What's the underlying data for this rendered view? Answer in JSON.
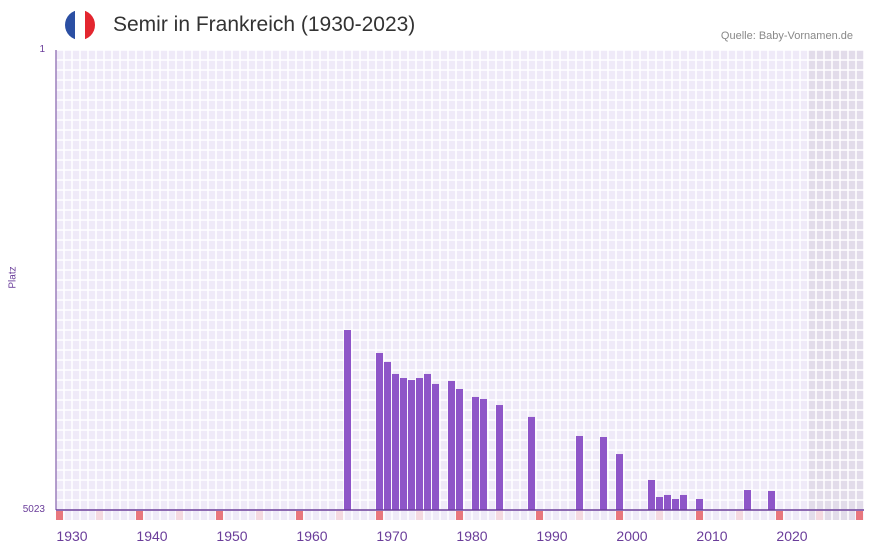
{
  "header": {
    "title": "Semir in Frankreich (1930-2023)",
    "source": "Quelle: Baby-Vornamen.de"
  },
  "colors": {
    "bar": "#8e56c8",
    "axis": "#6a3d9a",
    "decade": "#e8777e",
    "half": "#f4d9e0",
    "bg": "#efeaf8",
    "future": "#e2dcea"
  },
  "chart_data": {
    "type": "bar",
    "title": "Semir in Frankreich (1930-2023)",
    "xlabel": "",
    "ylabel": "Platz",
    "ylim": [
      5023,
      1
    ],
    "xlim": [
      1930,
      2030
    ],
    "y_tick_labels": [
      "1",
      "5023"
    ],
    "x_tick_labels": [
      "1930",
      "1940",
      "1950",
      "1960",
      "1970",
      "1980",
      "1990",
      "2000",
      "2010",
      "2020"
    ],
    "x": [
      1966,
      1970,
      1971,
      1972,
      1973,
      1974,
      1975,
      1976,
      1977,
      1979,
      1980,
      1982,
      1983,
      1985,
      1989,
      1995,
      1998,
      2000,
      2004,
      2005,
      2006,
      2007,
      2008,
      2010,
      2016,
      2019
    ],
    "values": [
      3058,
      3309,
      3407,
      3538,
      3582,
      3604,
      3582,
      3538,
      3647,
      3614,
      3702,
      3789,
      3811,
      3877,
      4007,
      4215,
      4226,
      4412,
      4695,
      4881,
      4859,
      4903,
      4859,
      4903,
      4805,
      4815
    ]
  }
}
